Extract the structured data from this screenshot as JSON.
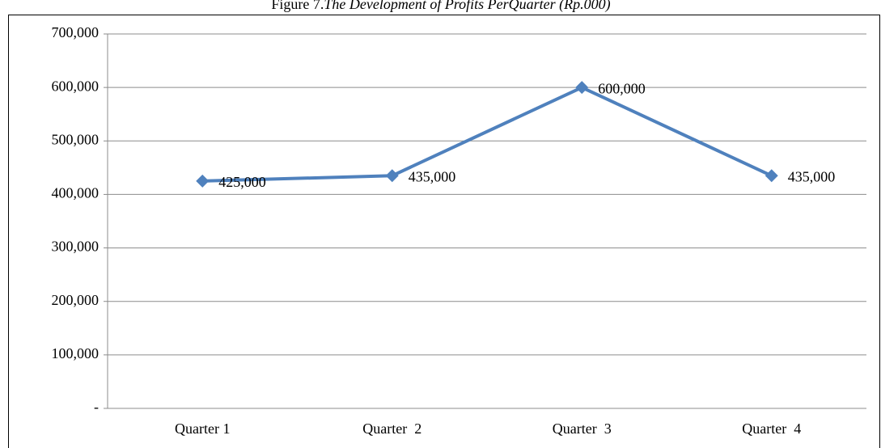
{
  "chart_data": {
    "type": "line",
    "figure_label": "Figure 7.",
    "title": "The Development of Profits PerQuarter (Rp.000)",
    "categories": [
      "Quarter 1",
      "Quarter  2",
      "Quarter  3",
      "Quarter  4"
    ],
    "series": [
      {
        "name": "Profits",
        "color": "#4f81bd",
        "values": [
          425000,
          435000,
          600000,
          435000
        ],
        "value_labels": [
          "425,000",
          "435,000",
          "600,000",
          "435,000"
        ]
      }
    ],
    "ylim": [
      0,
      700000
    ],
    "yticks": [
      {
        "value": 0,
        "label": "-"
      },
      {
        "value": 100000,
        "label": "100,000"
      },
      {
        "value": 200000,
        "label": "200,000"
      },
      {
        "value": 300000,
        "label": "300,000"
      },
      {
        "value": 400000,
        "label": "400,000"
      },
      {
        "value": 500000,
        "label": "500,000"
      },
      {
        "value": 600000,
        "label": "600,000"
      },
      {
        "value": 700000,
        "label": "700,000"
      }
    ],
    "grid": true
  }
}
